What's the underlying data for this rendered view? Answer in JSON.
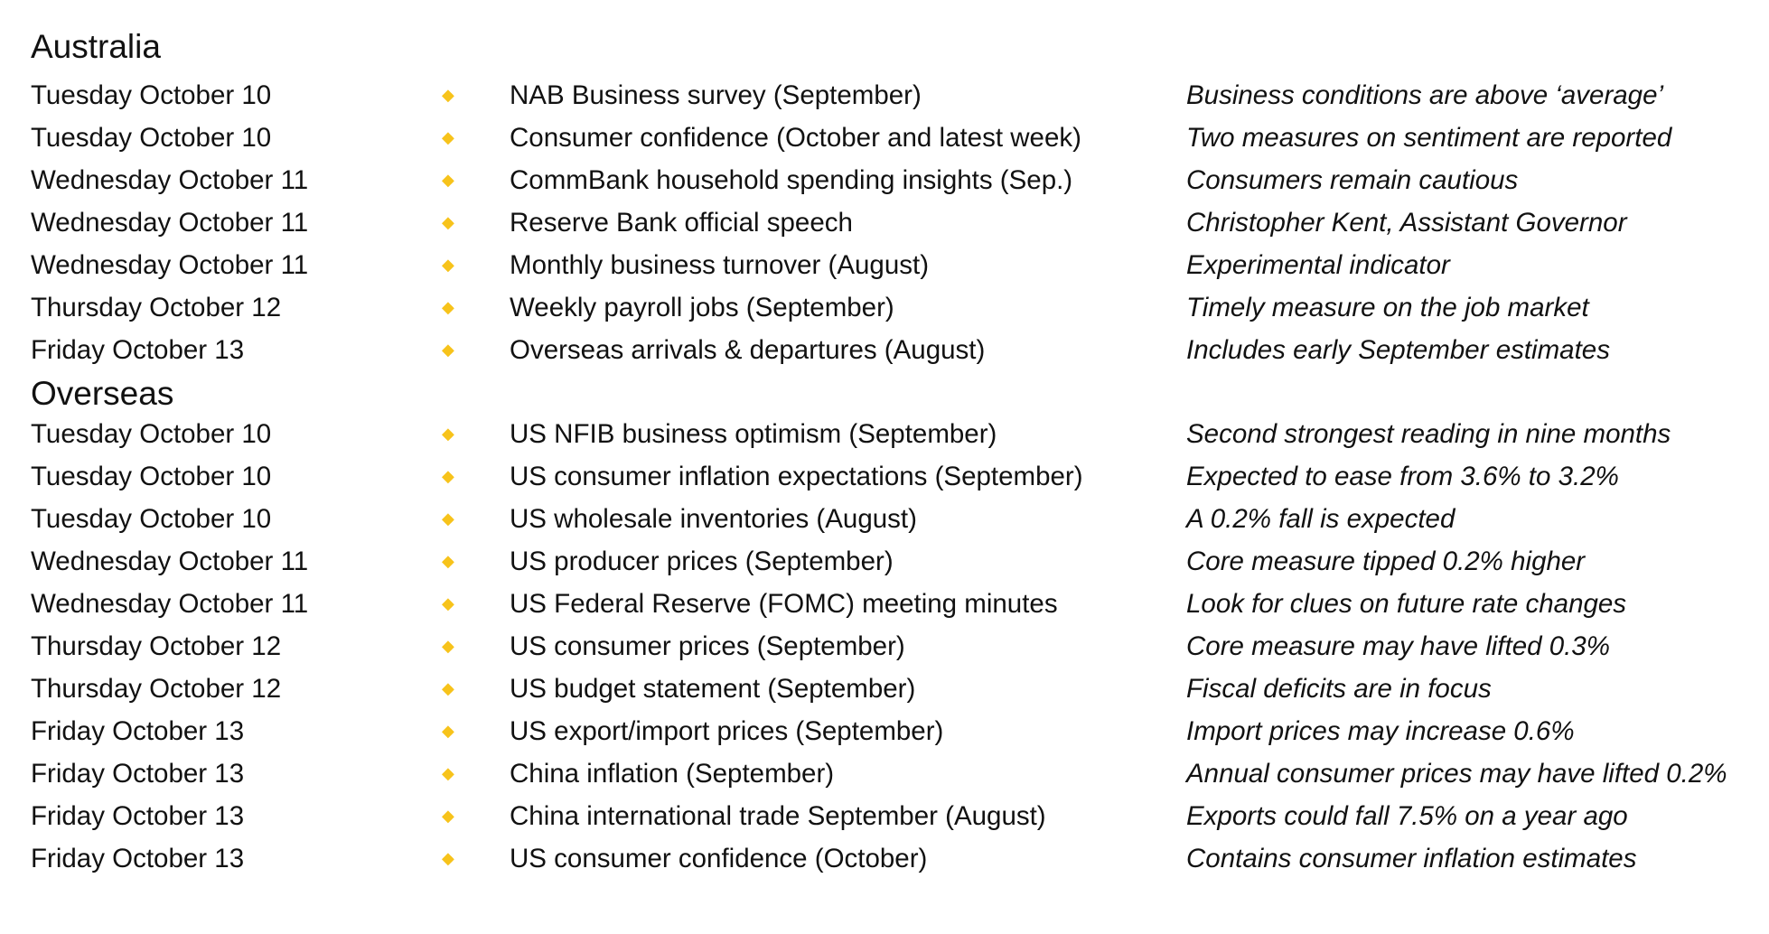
{
  "sections": [
    {
      "title": "Australia",
      "rows": [
        {
          "date": "Tuesday October 10",
          "event": "NAB Business survey (September)",
          "note": "Business conditions are above ‘average’"
        },
        {
          "date": "Tuesday October 10",
          "event": "Consumer confidence (October and latest week)",
          "note": "Two measures on sentiment are reported"
        },
        {
          "date": "Wednesday October 11",
          "event": "CommBank household spending insights (Sep.)",
          "note": "Consumers remain cautious"
        },
        {
          "date": "Wednesday October 11",
          "event": "Reserve Bank official speech",
          "note": "Christopher Kent, Assistant Governor"
        },
        {
          "date": "Wednesday October 11",
          "event": "Monthly business turnover (August)",
          "note": "Experimental indicator"
        },
        {
          "date": "Thursday October 12",
          "event": "Weekly payroll jobs (September)",
          "note": "Timely measure on the job market"
        },
        {
          "date": "Friday October 13",
          "event": "Overseas arrivals & departures (August)",
          "note": "Includes early September estimates"
        }
      ]
    },
    {
      "title": "Overseas",
      "rows": [
        {
          "date": "Tuesday October 10",
          "event": "US NFIB business optimism (September)",
          "note": "Second strongest reading in nine months"
        },
        {
          "date": "Tuesday October 10",
          "event": "US consumer inflation expectations (September)",
          "note": "Expected to ease from 3.6% to 3.2%"
        },
        {
          "date": "Tuesday October 10",
          "event": "US wholesale inventories (August)",
          "note": "A 0.2% fall is expected"
        },
        {
          "date": "Wednesday October 11",
          "event": "US producer prices (September)",
          "note": "Core measure tipped 0.2% higher"
        },
        {
          "date": "Wednesday October 11",
          "event": "US Federal Reserve (FOMC) meeting minutes",
          "note": "Look for clues on future rate changes"
        },
        {
          "date": "Thursday October 12",
          "event": "US consumer prices (September)",
          "note": "Core measure may have lifted 0.3%"
        },
        {
          "date": "Thursday October 12",
          "event": "US budget statement (September)",
          "note": "Fiscal deficits are in focus"
        },
        {
          "date": "Friday October 13",
          "event": "US export/import prices (September)",
          "note": "Import prices may increase 0.6%"
        },
        {
          "date": "Friday October 13",
          "event": "China inflation (September)",
          "note": "Annual consumer prices may have lifted 0.2%"
        },
        {
          "date": "Friday October 13",
          "event": "China international trade September (August)",
          "note": "Exports could fall 7.5% on a year ago"
        },
        {
          "date": "Friday October 13",
          "event": "US consumer confidence (October)",
          "note": "Contains consumer inflation estimates"
        }
      ]
    }
  ],
  "bullet_symbol": "◆",
  "colors": {
    "bullet": "#f7c31b",
    "text": "#111111",
    "background": "#ffffff"
  }
}
